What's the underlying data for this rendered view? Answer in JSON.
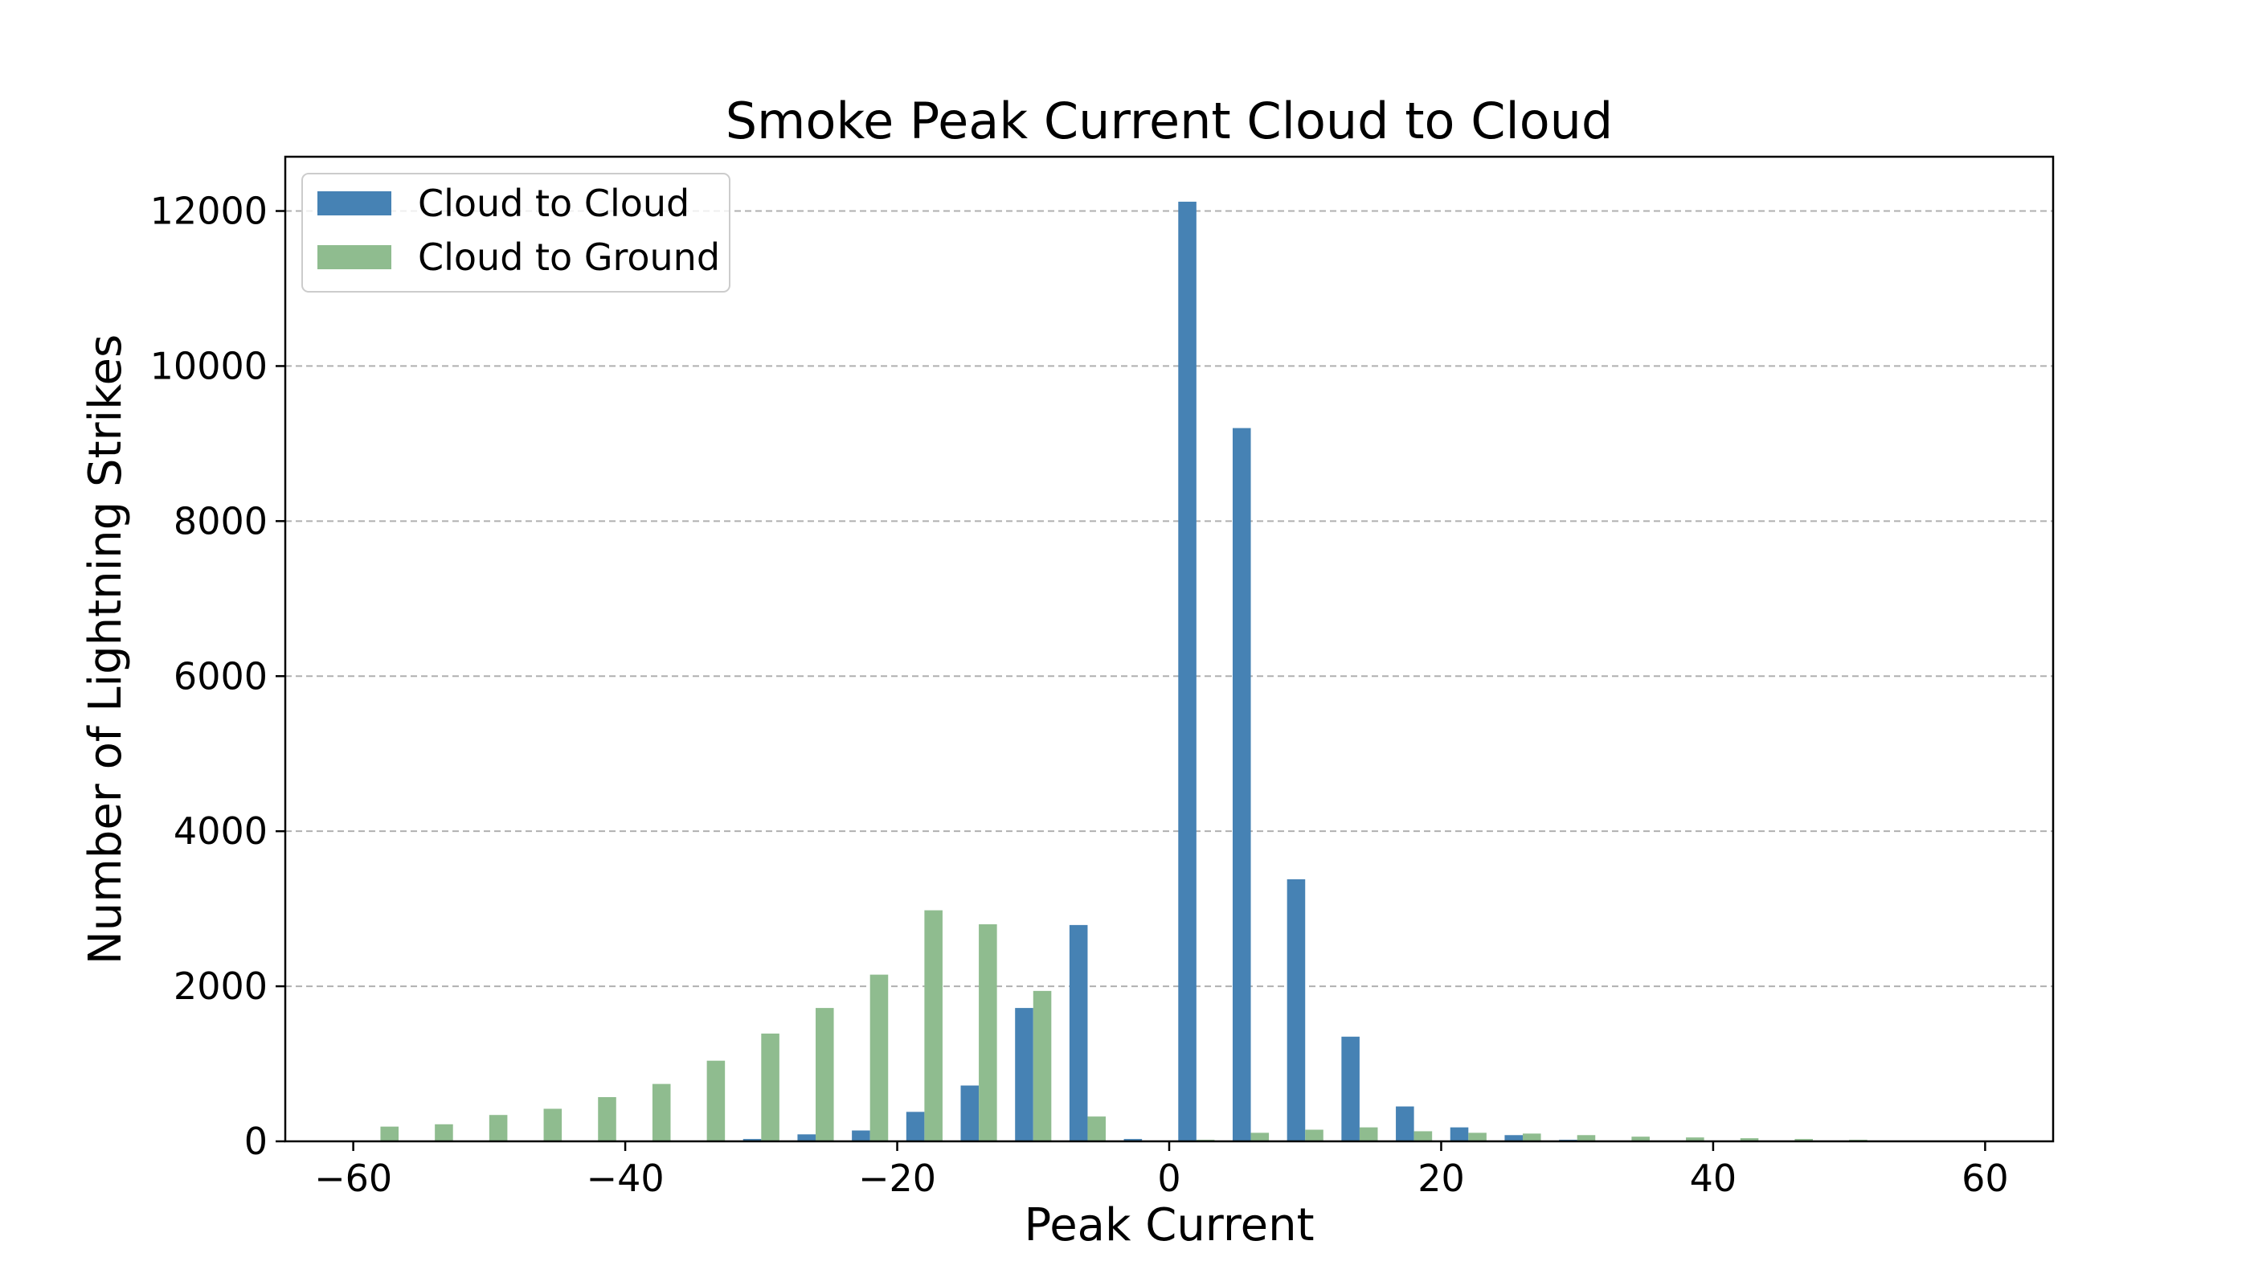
{
  "chart_data": {
    "type": "bar",
    "title": "Smoke Peak Current Cloud to Cloud",
    "xlabel": "Peak Current",
    "ylabel": "Number of Lightning Strikes",
    "xlim": [
      -65,
      65
    ],
    "ylim": [
      0,
      12700
    ],
    "xticks": [
      -60,
      -40,
      -20,
      0,
      20,
      40,
      60
    ],
    "xtick_labels": [
      "−60",
      "−40",
      "−20",
      "0",
      "20",
      "40",
      "60"
    ],
    "yticks": [
      0,
      2000,
      4000,
      6000,
      8000,
      10000,
      12000
    ],
    "ytick_labels": [
      "0",
      "2000",
      "4000",
      "6000",
      "8000",
      "10000",
      "12000"
    ],
    "grid": "y-dashed",
    "legend_position": "upper-left",
    "bin_width": 4,
    "bar_width": 1.333,
    "x": [
      -58,
      -54,
      -50,
      -46,
      -42,
      -38,
      -34,
      -30,
      -26,
      -22,
      -18,
      -14,
      -10,
      -6,
      -2,
      2,
      6,
      10,
      14,
      18,
      22,
      26,
      30,
      34,
      38,
      42,
      46,
      50,
      54,
      58
    ],
    "series": [
      {
        "name": "Cloud to Cloud",
        "color": "#4682b4",
        "values": [
          0,
          0,
          0,
          0,
          0,
          5,
          10,
          30,
          90,
          140,
          380,
          720,
          1720,
          2790,
          30,
          12120,
          9200,
          3380,
          1350,
          450,
          180,
          80,
          20,
          10,
          5,
          0,
          0,
          0,
          0,
          5
        ]
      },
      {
        "name": "Cloud to Ground",
        "color": "#8fbc8f",
        "values": [
          190,
          220,
          340,
          420,
          570,
          740,
          1040,
          1390,
          1720,
          2150,
          2980,
          2800,
          1940,
          320,
          0,
          20,
          110,
          150,
          180,
          130,
          110,
          100,
          80,
          60,
          50,
          40,
          30,
          20,
          10,
          5
        ]
      }
    ]
  }
}
